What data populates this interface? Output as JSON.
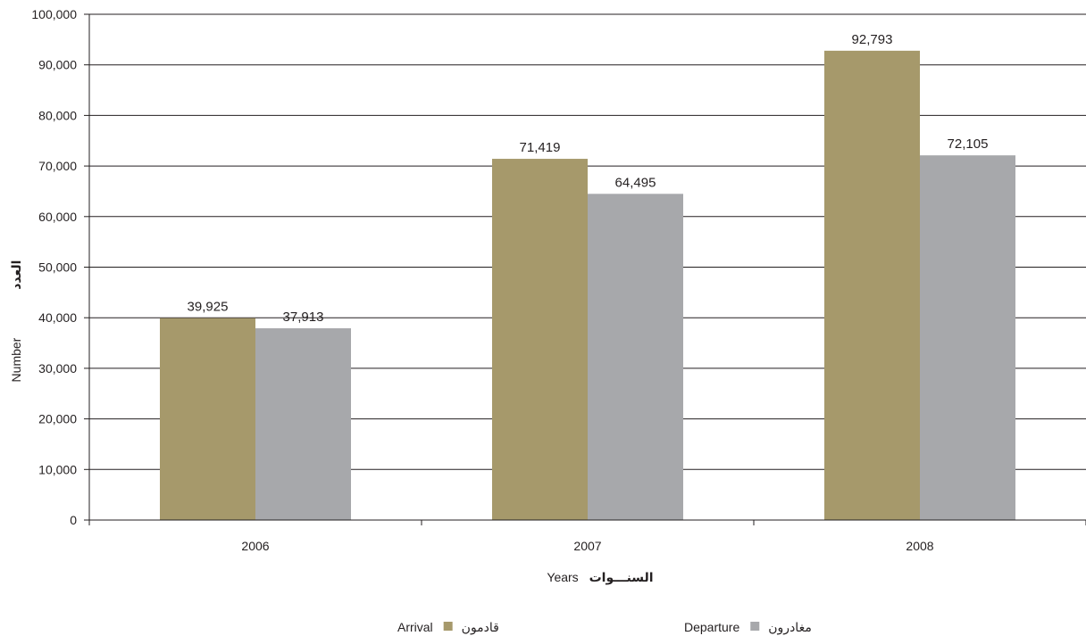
{
  "chart_data": {
    "type": "bar",
    "categories": [
      "2006",
      "2007",
      "2008"
    ],
    "series": [
      {
        "name": "Arrival",
        "name_ar": "قادمون",
        "color": "#a6996b",
        "values": [
          39925,
          71419,
          92793
        ],
        "labels": [
          "39,925",
          "71,419",
          "92,793"
        ]
      },
      {
        "name": "Departure",
        "name_ar": "مغادرون",
        "color": "#a7a8ab",
        "values": [
          37913,
          64495,
          72105
        ],
        "labels": [
          "37,913",
          "64,495",
          "72,105"
        ]
      }
    ],
    "ylim": [
      0,
      100000
    ],
    "yticks": [
      0,
      10000,
      20000,
      30000,
      40000,
      50000,
      60000,
      70000,
      80000,
      90000,
      100000
    ],
    "ytick_labels": [
      "0",
      "10,000",
      "20,000",
      "30,000",
      "40,000",
      "50,000",
      "60,000",
      "70,000",
      "80,000",
      "90,000",
      "100,000"
    ],
    "xlabel": "Years",
    "xlabel_ar": "السنـــوات",
    "ylabel": "Number",
    "ylabel_ar": "العدد",
    "grid": true,
    "legend_position": "bottom"
  }
}
